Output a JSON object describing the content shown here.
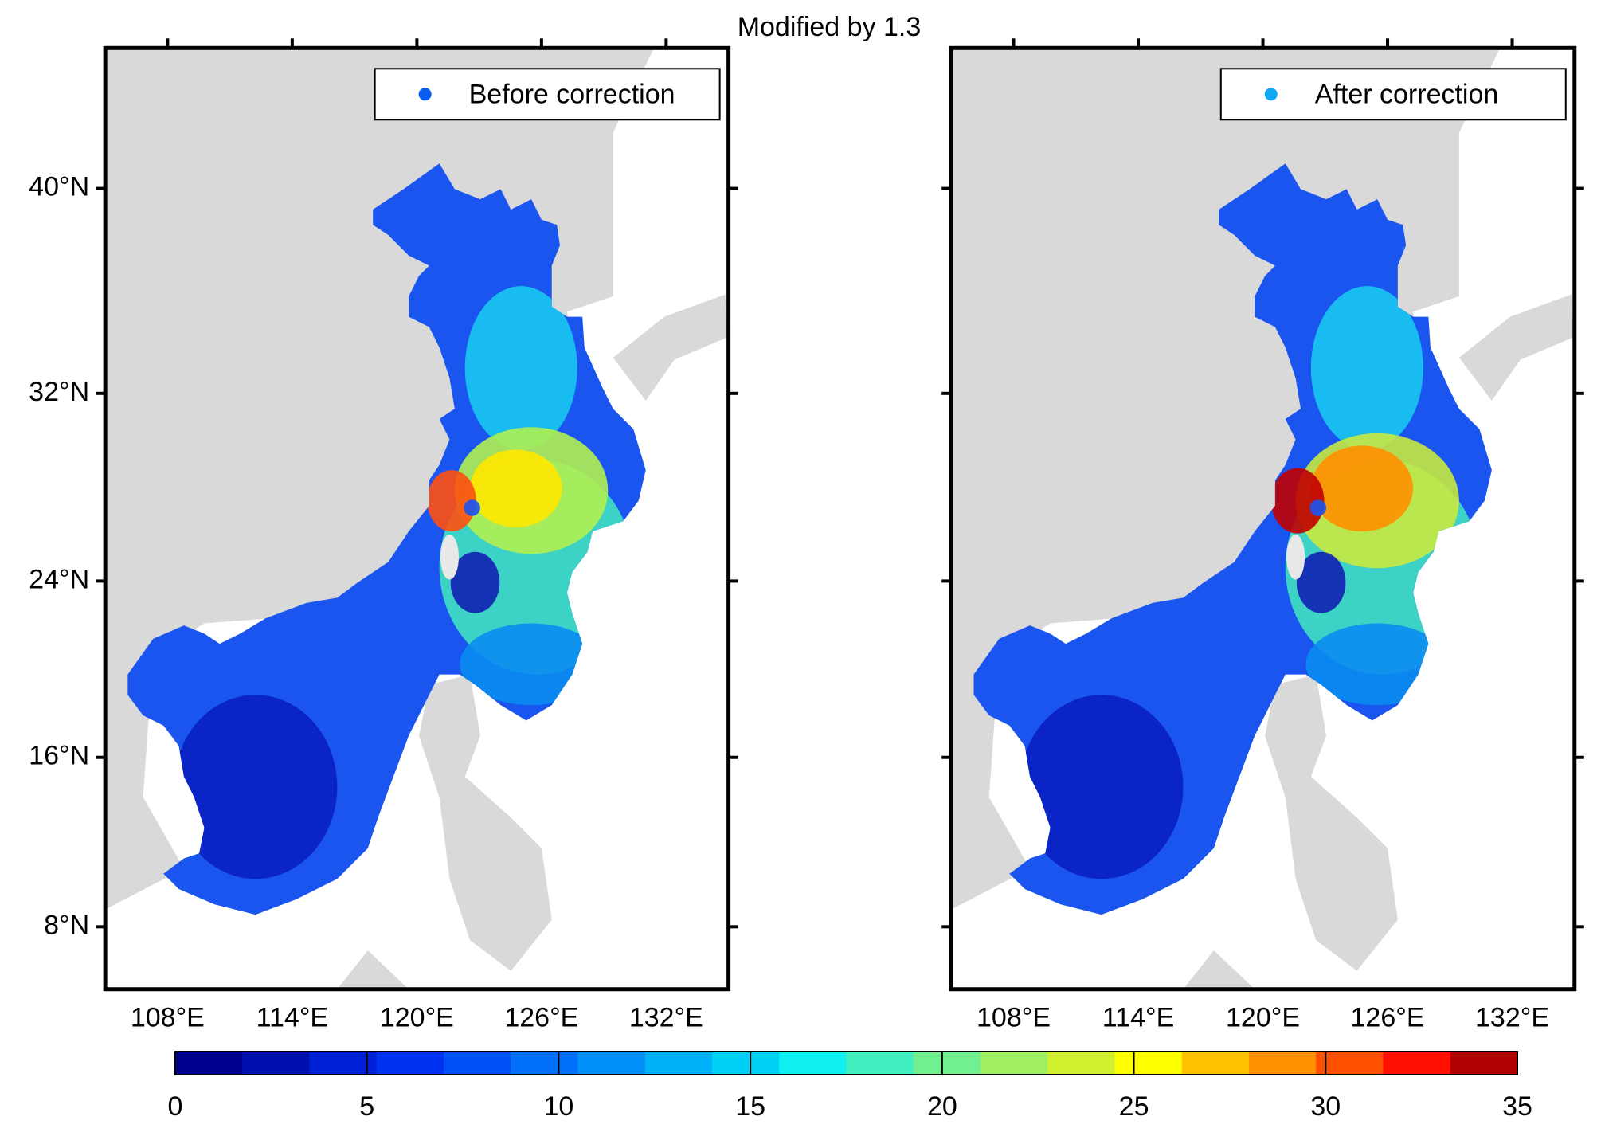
{
  "chart_data": {
    "type": "map",
    "title": "Modified by 1.3",
    "projection": "mercator",
    "panels": [
      {
        "legend": "Before correction",
        "marker_color": "#0a5cf0",
        "variant": "before",
        "xlim": [
          105,
          135
        ],
        "ylim": [
          5,
          45
        ],
        "xticks": [
          {
            "value": 108,
            "label": "108°E"
          },
          {
            "value": 114,
            "label": "114°E"
          },
          {
            "value": 120,
            "label": "120°E"
          },
          {
            "value": 126,
            "label": "126°E"
          },
          {
            "value": 132,
            "label": "132°E"
          }
        ],
        "yticks": [
          {
            "value": 8,
            "label": "8°N"
          },
          {
            "value": 16,
            "label": "16°N"
          },
          {
            "value": 24,
            "label": "24°N"
          },
          {
            "value": 32,
            "label": "32°N"
          },
          {
            "value": 40,
            "label": "40°N"
          }
        ]
      },
      {
        "legend": "After correction",
        "marker_color": "#12a8f5",
        "variant": "after",
        "xlim": [
          105,
          135
        ],
        "ylim": [
          5,
          45
        ],
        "xticks": [
          {
            "value": 108,
            "label": "108°E"
          },
          {
            "value": 114,
            "label": "114°E"
          },
          {
            "value": 120,
            "label": "120°E"
          },
          {
            "value": 126,
            "label": "126°E"
          },
          {
            "value": 132,
            "label": "132°E"
          }
        ],
        "yticks": [
          8,
          16,
          24,
          32,
          40
        ],
        "show_ytick_labels": false
      }
    ],
    "colorbar": {
      "clim": [
        0,
        35
      ],
      "ticks": [
        0,
        5,
        10,
        15,
        20,
        25,
        30,
        35
      ],
      "colors": [
        "#00008f",
        "#0010b0",
        "#0020d8",
        "#0030f0",
        "#0050f8",
        "#0070f8",
        "#0090f8",
        "#00b0f8",
        "#00d0f8",
        "#10f0f0",
        "#40f0c0",
        "#70f090",
        "#a0f060",
        "#d0f030",
        "#ffff00",
        "#ffc000",
        "#ff9000",
        "#ff5000",
        "#ff1000",
        "#b00000"
      ]
    }
  }
}
